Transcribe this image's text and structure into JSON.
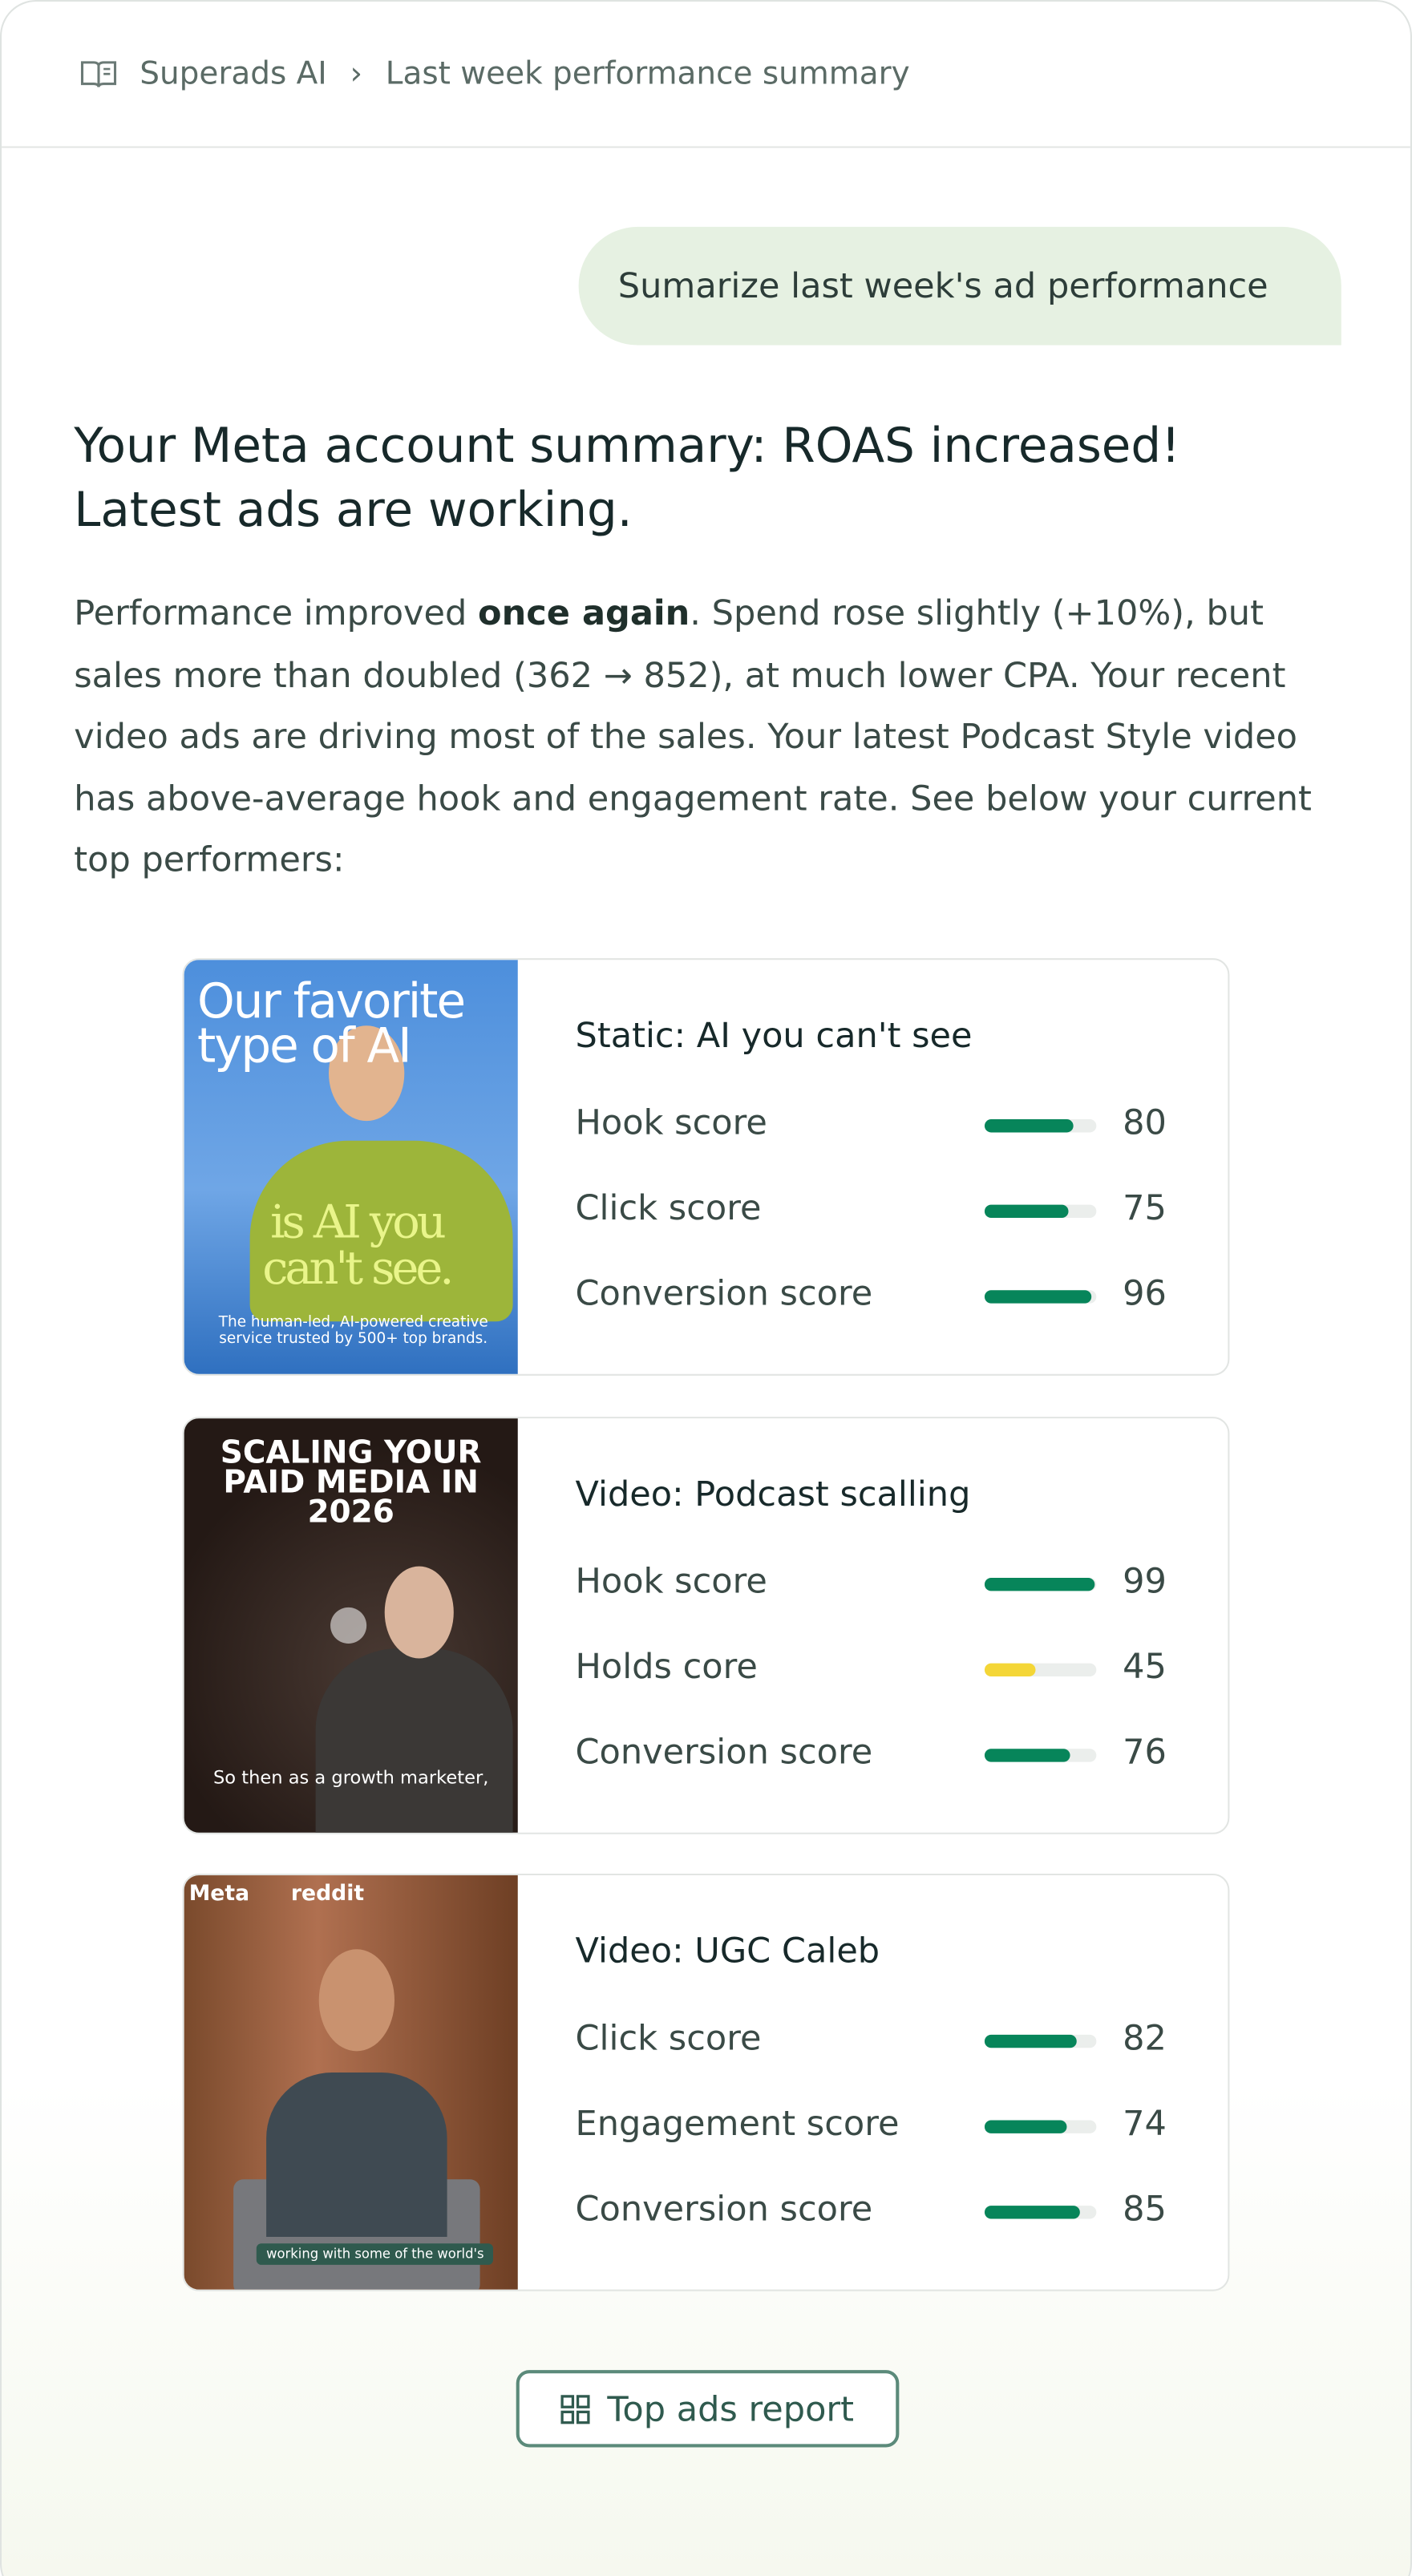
{
  "breadcrumb": {
    "root": "Superads AI",
    "page": "Last week performance summary"
  },
  "user_message": "Sumarize last week's ad performance",
  "reply": {
    "heading": "Your Meta account summary: ROAS increased! Latest ads are working.",
    "body": [
      {
        "text": "Performance improved ",
        "bold": false
      },
      {
        "text": "once again",
        "bold": true
      },
      {
        "text": ". Spend rose slightly (+10%), but sales more than doubled (362 → 852), at much lower CPA. Your recent video ads are driving most of the sales. Your latest Podcast Style video has above-average hook and engagement rate.  See below your current top performers:",
        "bold": false
      }
    ],
    "ads": [
      {
        "title": "Static: AI you can't see",
        "thumbnail": {
          "headline": "Our favorite type of AI",
          "tagline": "is AI you can't see.",
          "caption": "The human-led, AI-powered creative service trusted by 500+ top brands."
        },
        "metrics": [
          {
            "name": "Hook score",
            "value": 80,
            "color": "#07855a"
          },
          {
            "name": "Click score",
            "value": 75,
            "color": "#07855a"
          },
          {
            "name": "Conversion score",
            "value": 96,
            "color": "#07855a"
          }
        ]
      },
      {
        "title": "Video: Podcast scalling",
        "thumbnail": {
          "headline": "SCALING YOUR PAID MEDIA IN 2026",
          "caption": "So then as a growth marketer,"
        },
        "metrics": [
          {
            "name": "Hook score",
            "value": 99,
            "color": "#07855a"
          },
          {
            "name": "Holds core",
            "value": 45,
            "color": "#f4d637"
          },
          {
            "name": "Conversion score",
            "value": 76,
            "color": "#07855a"
          }
        ]
      },
      {
        "title": "Video: UGC Caleb",
        "thumbnail": {
          "logos": [
            "Meta",
            "reddit"
          ],
          "caption": "working with some of the world's"
        },
        "metrics": [
          {
            "name": "Click score",
            "value": 82,
            "color": "#07855a"
          },
          {
            "name": "Engagement score",
            "value": 74,
            "color": "#07855a"
          },
          {
            "name": "Conversion score",
            "value": 85,
            "color": "#07855a"
          }
        ]
      }
    ],
    "button": "Top ads report"
  }
}
